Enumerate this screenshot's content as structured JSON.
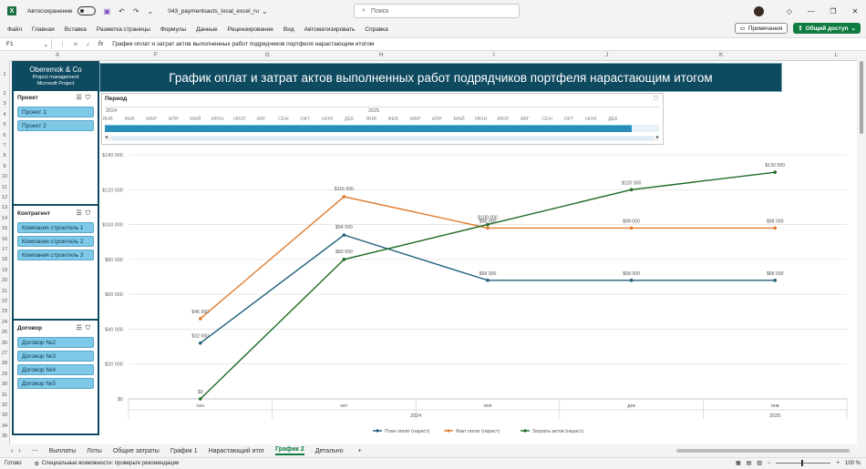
{
  "titlebar": {
    "autosave_label": "Автосохранение",
    "filename": "043_paymentsacts_local_excel_ru",
    "search_placeholder": "Поиск"
  },
  "ribbon": {
    "tabs": [
      "Файл",
      "Главная",
      "Вставка",
      "Разметка страницы",
      "Формулы",
      "Данные",
      "Рецензирование",
      "Вид",
      "Автоматизировать",
      "Справка"
    ],
    "notes_label": "Примечания",
    "share_label": "Общий доступ"
  },
  "formula_bar": {
    "cell": "F1",
    "fx": "fx",
    "content": "График оплат и затрат актов выполненных работ подрядчиков портфеля нарастающим итогом"
  },
  "columns": [
    "A",
    "F",
    "G",
    "H",
    "I",
    "J",
    "K",
    "L"
  ],
  "rows": [
    "1",
    "2",
    "3",
    "4",
    "5",
    "6",
    "7",
    "8",
    "9",
    "10",
    "11",
    "12",
    "13",
    "14",
    "15",
    "16",
    "17",
    "18",
    "19",
    "20",
    "21",
    "22",
    "23",
    "24",
    "25",
    "26",
    "27",
    "28",
    "29",
    "30",
    "31",
    "32",
    "33",
    "34",
    "35"
  ],
  "brand": {
    "name": "Oberemok & Co",
    "line2": "Project management",
    "line3": "Microsoft Project"
  },
  "slicers": {
    "project": {
      "title": "Проект",
      "items": [
        "Проект 1",
        "Проект 2"
      ]
    },
    "contractor": {
      "title": "Контрагент",
      "items": [
        "Компания строитель 1",
        "Компания строитель 2",
        "Компания строитель 3"
      ]
    },
    "contract": {
      "title": "Договор",
      "items": [
        "Договор №2",
        "Договор №3",
        "Договор №4",
        "Договор №5"
      ]
    }
  },
  "main_title": "График оплат и затрат актов выполненных работ подрядчиков портфеля нарастающим итогом",
  "period": {
    "title": "Период",
    "years": [
      "2024",
      "2025"
    ],
    "months": [
      "ЯНВ",
      "ФЕВ",
      "МАР",
      "АПР",
      "МАЙ",
      "ИЮН",
      "ИЮЛ",
      "АВГ",
      "СЕН",
      "ОКТ",
      "НОЯ",
      "ДЕК",
      "ЯНВ",
      "ФЕВ",
      "МАР",
      "АПР",
      "МАЙ",
      "ИЮН",
      "ИЮЛ",
      "АВГ",
      "СЕН",
      "ОКТ",
      "НОЯ",
      "ДЕК"
    ]
  },
  "chart_data": {
    "type": "line",
    "categories": [
      "сен",
      "окт",
      "ноя",
      "дек",
      "янв"
    ],
    "year_labels": [
      {
        "label": "2024",
        "span": [
          0,
          3
        ]
      },
      {
        "label": "2025",
        "span": [
          4,
          4
        ]
      }
    ],
    "ylim": [
      0,
      140000
    ],
    "yticks": [
      "$0",
      "$20 000",
      "$40 000",
      "$60 000",
      "$80 000",
      "$100 000",
      "$120 000",
      "$140 000"
    ],
    "grid": true,
    "legend_position": "bottom",
    "series": [
      {
        "name": "План оплат (нараст)",
        "color": "#1f5f7a",
        "values": [
          32000,
          94000,
          68000,
          68000,
          68000
        ],
        "labels": [
          "$32 000",
          "$94 000",
          "$68 000",
          "$68 000",
          "$68 000"
        ]
      },
      {
        "name": "Факт оплат (нараст)",
        "color": "#e07a2c",
        "values": [
          46000,
          116000,
          98000,
          98000,
          98000
        ],
        "labels": [
          "$46 000",
          "$116 000",
          "$98 000",
          "$98 000",
          "$98 000"
        ]
      },
      {
        "name": "Затраты актов (нараст)",
        "color": "#1c6b24",
        "values": [
          0,
          80000,
          100000,
          120000,
          130000
        ],
        "labels": [
          "$0",
          "$80 000",
          "$100 000",
          "$120 000",
          "$130 000"
        ]
      }
    ]
  },
  "sheet_tabs": [
    "Выплаты",
    "Лоты",
    "Общие затраты",
    "График 1",
    "Нарастающий итог",
    "График 2",
    "Детально"
  ],
  "active_sheet": "График 2",
  "statusbar": {
    "ready": "Готово",
    "accessibility": "Специальные возможности: проверьте рекомендации",
    "zoom": "100 %"
  }
}
